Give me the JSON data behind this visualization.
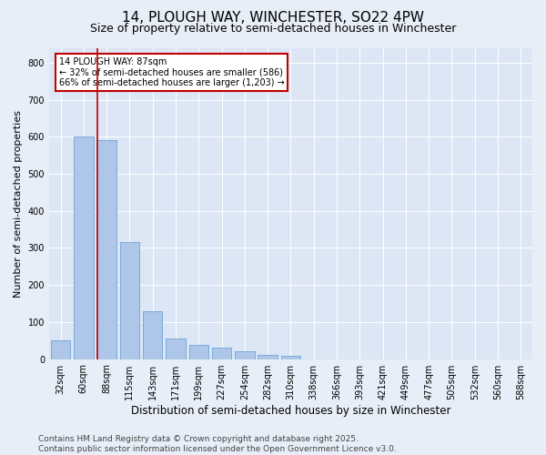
{
  "title": "14, PLOUGH WAY, WINCHESTER, SO22 4PW",
  "subtitle": "Size of property relative to semi-detached houses in Winchester",
  "xlabel": "Distribution of semi-detached houses by size in Winchester",
  "ylabel": "Number of semi-detached properties",
  "categories": [
    "32sqm",
    "60sqm",
    "88sqm",
    "115sqm",
    "143sqm",
    "171sqm",
    "199sqm",
    "227sqm",
    "254sqm",
    "282sqm",
    "310sqm",
    "338sqm",
    "366sqm",
    "393sqm",
    "421sqm",
    "449sqm",
    "477sqm",
    "505sqm",
    "532sqm",
    "560sqm",
    "588sqm"
  ],
  "values": [
    50,
    600,
    590,
    315,
    130,
    55,
    38,
    30,
    22,
    12,
    8,
    0,
    0,
    0,
    0,
    0,
    0,
    0,
    0,
    0,
    0
  ],
  "bar_color": "#aec6e8",
  "bar_edge_color": "#5b9bd5",
  "property_line_color": "#c00000",
  "annotation_text": "14 PLOUGH WAY: 87sqm\n← 32% of semi-detached houses are smaller (586)\n66% of semi-detached houses are larger (1,203) →",
  "annotation_box_color": "#ffffff",
  "annotation_box_edge": "#c00000",
  "footer": "Contains HM Land Registry data © Crown copyright and database right 2025.\nContains public sector information licensed under the Open Government Licence v3.0.",
  "background_color": "#e8eef7",
  "plot_background": "#dce6f5",
  "ylim": [
    0,
    840
  ],
  "yticks": [
    0,
    100,
    200,
    300,
    400,
    500,
    600,
    700,
    800
  ],
  "title_fontsize": 11,
  "subtitle_fontsize": 9,
  "ylabel_fontsize": 8,
  "xlabel_fontsize": 8.5,
  "tick_fontsize": 7,
  "footer_fontsize": 6.5,
  "annot_fontsize": 7
}
